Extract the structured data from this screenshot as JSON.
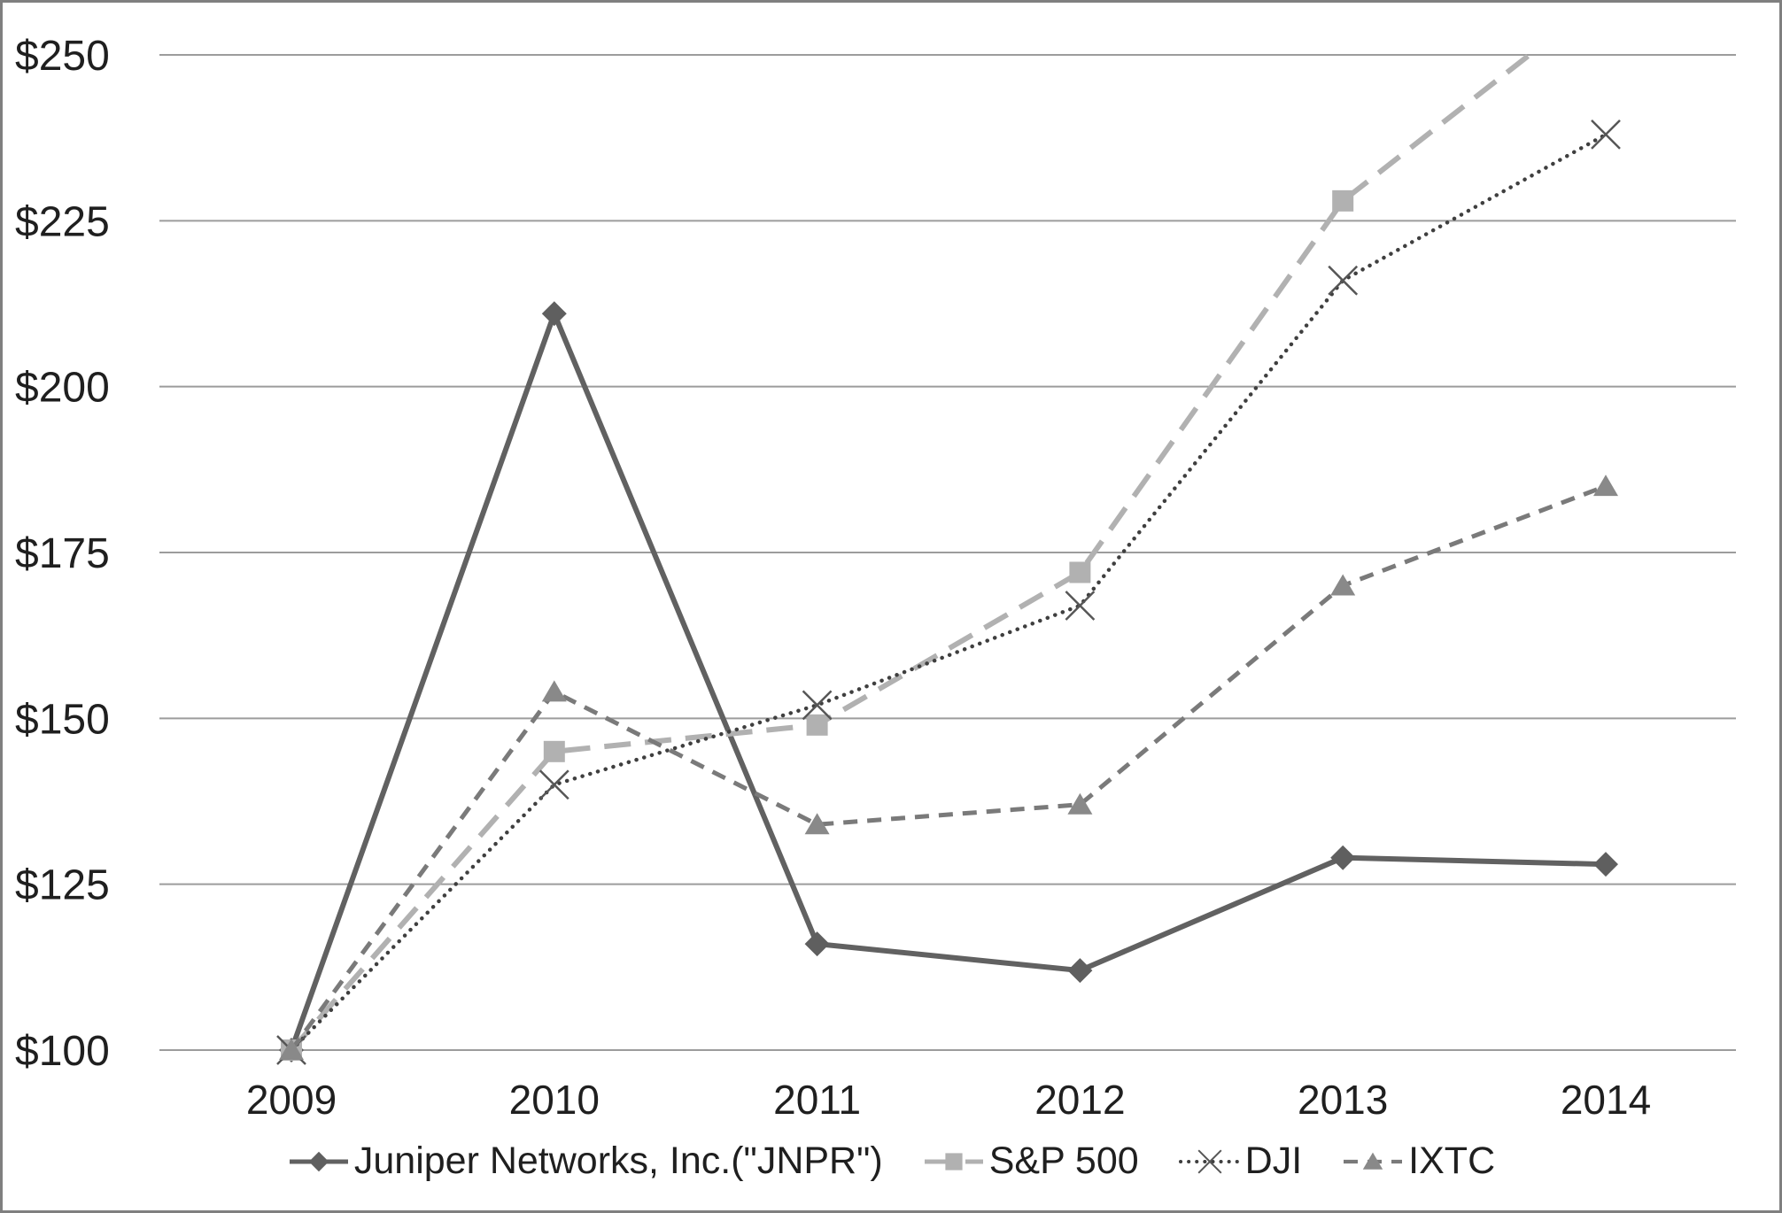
{
  "chart_data": {
    "type": "line",
    "title": "",
    "x_tick_labels": [
      "2009",
      "2010",
      "2011",
      "2012",
      "2013",
      "2014"
    ],
    "y_tick_labels": [
      "$100",
      "$125",
      "$150",
      "$175",
      "$200",
      "$225",
      "$250"
    ],
    "y_ticks": [
      100,
      125,
      150,
      175,
      200,
      225,
      250
    ],
    "ylim": [
      100,
      250
    ],
    "grid": "horizontal",
    "legend_position": "bottom",
    "series": [
      {
        "id": "jnpr",
        "name": "Juniper Networks, Inc.(\"JNPR\")",
        "values": [
          100,
          211,
          116,
          112,
          129,
          128
        ],
        "color": "#616161",
        "line_style": "solid",
        "line_width": 6,
        "marker": "diamond",
        "marker_color": "#5f5f5f",
        "clipped_at_top": false
      },
      {
        "id": "sp500",
        "name": "S&P 500",
        "values": [
          100,
          145,
          149,
          172,
          228,
          259
        ],
        "color": "#b1b1b1",
        "line_style": "long-dash",
        "line_width": 6,
        "marker": "square",
        "marker_color": "#b1b1b1",
        "clipped_at_top": true
      },
      {
        "id": "dji",
        "name": "DJI",
        "values": [
          100,
          140,
          152,
          167,
          216,
          238
        ],
        "color": "#3f3f3f",
        "line_style": "dotted",
        "line_width": 4.5,
        "marker": "x-cross",
        "marker_color": "#565656",
        "clipped_at_top": false
      },
      {
        "id": "ixtc",
        "name": "IXTC",
        "values": [
          100,
          154,
          134,
          137,
          170,
          185
        ],
        "color": "#7a7a7a",
        "line_style": "dash",
        "line_width": 5,
        "marker": "triangle",
        "marker_color": "#898989",
        "clipped_at_top": false
      }
    ],
    "colors": {
      "grid_color": "#9c9c9c",
      "frame_border_color": "#7f7f7f",
      "label_color": "#1f1f1f",
      "background": "#ffffff"
    }
  }
}
